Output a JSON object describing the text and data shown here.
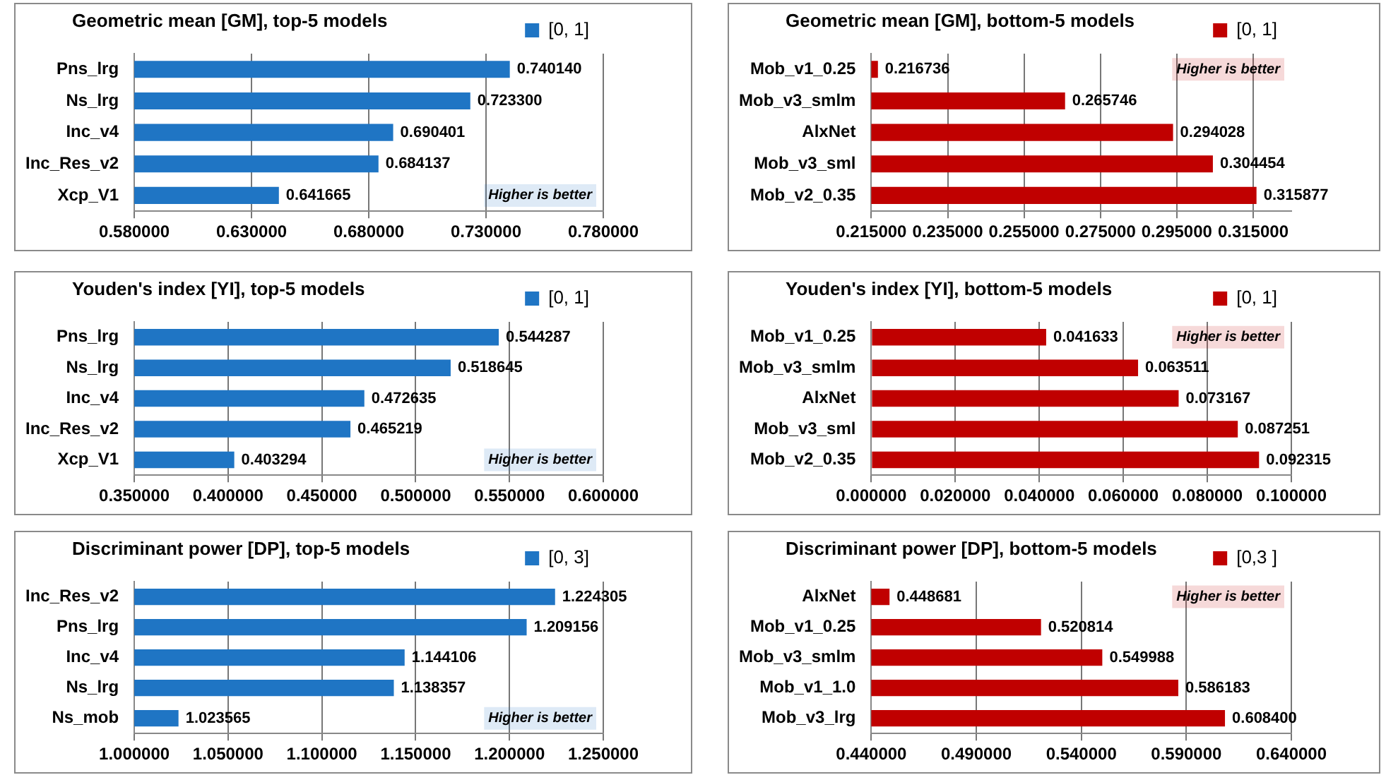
{
  "chart_data": [
    {
      "type": "bar",
      "orientation": "horizontal",
      "title": "Geometric mean [GM], top-5 models",
      "categories": [
        "Pns_lrg",
        "Ns_lrg",
        "Inc_v4",
        "Inc_Res_v2",
        "Xcp_V1"
      ],
      "series": [
        {
          "name": "[0, 1]",
          "color": "#1f75c4",
          "values": [
            0.74014,
            0.7233,
            0.690401,
            0.684137,
            0.641665
          ],
          "value_labels": [
            "0.740140",
            "0.723300",
            "0.690401",
            "0.684137",
            "0.641665"
          ]
        }
      ],
      "xlim": [
        0.58,
        0.78
      ],
      "xticks": [
        {
          "value": 0.58,
          "label": "0.580000"
        },
        {
          "value": 0.63,
          "label": "0.630000"
        },
        {
          "value": 0.68,
          "label": "0.680000"
        },
        {
          "value": 0.73,
          "label": "0.730000"
        },
        {
          "value": 0.78,
          "label": "0.780000"
        }
      ],
      "grid": "x",
      "legend": "top right",
      "annotations": [
        "Higher is better"
      ]
    },
    {
      "type": "bar",
      "orientation": "horizontal",
      "title": "Geometric mean [GM], bottom-5 models",
      "categories": [
        "Mob_v1_0.25",
        "Mob_v3_smlm",
        "AlxNet",
        "Mob_v3_sml",
        "Mob_v2_0.35"
      ],
      "series": [
        {
          "name": "[0, 1]",
          "color": "#c00000",
          "values": [
            0.216736,
            0.265746,
            0.294028,
            0.304454,
            0.315877
          ],
          "value_labels": [
            "0.216736",
            "0.265746",
            "0.294028",
            "0.304454",
            "0.315877"
          ]
        }
      ],
      "xlim": [
        0.215,
        0.325
      ],
      "xticks": [
        {
          "value": 0.215,
          "label": "0.215000"
        },
        {
          "value": 0.235,
          "label": "0.235000"
        },
        {
          "value": 0.255,
          "label": "0.255000"
        },
        {
          "value": 0.275,
          "label": "0.275000"
        },
        {
          "value": 0.295,
          "label": "0.295000"
        },
        {
          "value": 0.315,
          "label": "0.315000"
        }
      ],
      "grid": "x",
      "legend": "top right",
      "annotations": [
        "Higher is better"
      ]
    },
    {
      "type": "bar",
      "orientation": "horizontal",
      "title": "Youden's index [YI], top-5 models",
      "categories": [
        "Pns_lrg",
        "Ns_lrg",
        "Inc_v4",
        "Inc_Res_v2",
        "Xcp_V1"
      ],
      "series": [
        {
          "name": "[0, 1]",
          "color": "#1f75c4",
          "values": [
            0.544287,
            0.518645,
            0.472635,
            0.465219,
            0.403294
          ],
          "value_labels": [
            "0.544287",
            "0.518645",
            "0.472635",
            "0.465219",
            "0.403294"
          ]
        }
      ],
      "xlim": [
        0.35,
        0.6
      ],
      "xticks": [
        {
          "value": 0.35,
          "label": "0.350000"
        },
        {
          "value": 0.4,
          "label": "0.400000"
        },
        {
          "value": 0.45,
          "label": "0.450000"
        },
        {
          "value": 0.5,
          "label": "0.500000"
        },
        {
          "value": 0.55,
          "label": "0.550000"
        },
        {
          "value": 0.6,
          "label": "0.600000"
        }
      ],
      "grid": "x",
      "legend": "top right",
      "annotations": [
        "Higher is better"
      ]
    },
    {
      "type": "bar",
      "orientation": "horizontal",
      "title": "Youden's index [YI], bottom-5 models",
      "categories": [
        "Mob_v1_0.25",
        "Mob_v3_smlm",
        "AlxNet",
        "Mob_v3_sml",
        "Mob_v2_0.35"
      ],
      "series": [
        {
          "name": "[0, 1]",
          "color": "#c00000",
          "values": [
            0.041633,
            0.063511,
            0.073167,
            0.087251,
            0.092315
          ],
          "value_labels": [
            "0.041633",
            "0.063511",
            "0.073167",
            "0.087251",
            "0.092315"
          ]
        }
      ],
      "xlim": [
        0,
        0.1
      ],
      "xticks": [
        {
          "value": 0,
          "label": "0.000000"
        },
        {
          "value": 0.02,
          "label": "0.020000"
        },
        {
          "value": 0.04,
          "label": "0.040000"
        },
        {
          "value": 0.06,
          "label": "0.060000"
        },
        {
          "value": 0.08,
          "label": "0.080000"
        },
        {
          "value": 0.1,
          "label": "0.100000"
        }
      ],
      "grid": "x",
      "legend": "top right",
      "annotations": [
        "Higher is better"
      ]
    },
    {
      "type": "bar",
      "orientation": "horizontal",
      "title": "Discriminant power [DP], top-5 models",
      "categories": [
        "Inc_Res_v2",
        "Pns_lrg",
        "Inc_v4",
        "Ns_lrg",
        "Ns_mob"
      ],
      "series": [
        {
          "name": "[0, 3]",
          "color": "#1f75c4",
          "values": [
            1.224305,
            1.209156,
            1.144106,
            1.138357,
            1.023565
          ],
          "value_labels": [
            "1.224305",
            "1.209156",
            "1.144106",
            "1.138357",
            "1.023565"
          ]
        }
      ],
      "xlim": [
        1.0,
        1.25
      ],
      "xticks": [
        {
          "value": 1.0,
          "label": "1.000000"
        },
        {
          "value": 1.05,
          "label": "1.050000"
        },
        {
          "value": 1.1,
          "label": "1.100000"
        },
        {
          "value": 1.15,
          "label": "1.150000"
        },
        {
          "value": 1.2,
          "label": "1.200000"
        },
        {
          "value": 1.25,
          "label": "1.250000"
        }
      ],
      "grid": "x",
      "legend": "top right",
      "annotations": [
        "Higher is better"
      ]
    },
    {
      "type": "bar",
      "orientation": "horizontal",
      "title": "Discriminant power [DP], bottom-5 models",
      "categories": [
        "AlxNet",
        "Mob_v1_0.25",
        "Mob_v3_smlm",
        "Mob_v1_1.0",
        "Mob_v3_lrg"
      ],
      "series": [
        {
          "name": "[0,3 ]",
          "color": "#c00000",
          "values": [
            0.448681,
            0.520814,
            0.549988,
            0.586183,
            0.6084
          ],
          "value_labels": [
            "0.448681",
            "0.520814",
            "0.549988",
            "0.586183",
            "0.608400"
          ]
        }
      ],
      "xlim": [
        0.44,
        0.64
      ],
      "xticks": [
        {
          "value": 0.44,
          "label": "0.440000"
        },
        {
          "value": 0.49,
          "label": "0.490000"
        },
        {
          "value": 0.54,
          "label": "0.540000"
        },
        {
          "value": 0.59,
          "label": "0.590000"
        },
        {
          "value": 0.64,
          "label": "0.640000"
        }
      ],
      "grid": "x",
      "legend": "top right",
      "annotations": [
        "Higher is better"
      ]
    }
  ]
}
